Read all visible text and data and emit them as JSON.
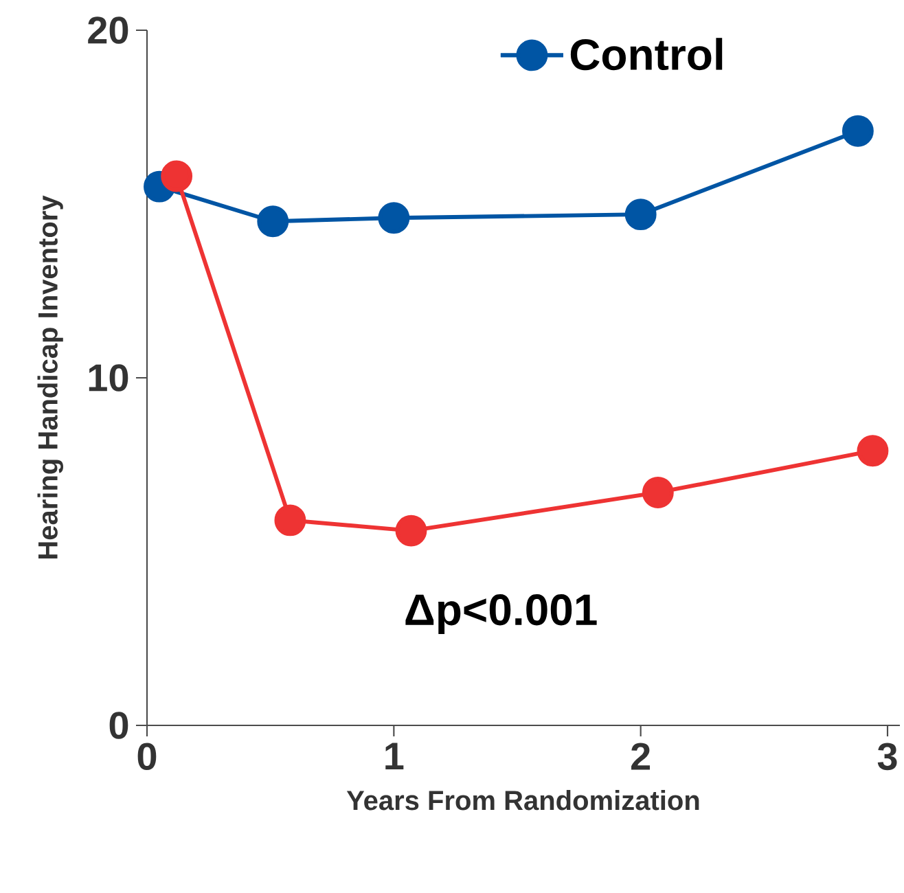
{
  "chart_data": {
    "type": "line",
    "xlabel": "Years From Randomization",
    "ylabel": "Hearing Handicap Inventory",
    "xlim": [
      0,
      3.05
    ],
    "ylim": [
      0,
      20
    ],
    "xticks": [
      0,
      1,
      2,
      3
    ],
    "yticks": [
      0,
      10,
      20
    ],
    "series": [
      {
        "name": "Control",
        "color": "#0055a4",
        "x": [
          0.05,
          0.51,
          1.0,
          2.0,
          2.88
        ],
        "values": [
          15.5,
          14.5,
          14.6,
          14.7,
          17.1
        ]
      },
      {
        "color": "#ee3333",
        "x": [
          0.12,
          0.58,
          1.07,
          2.07,
          2.94
        ],
        "values": [
          15.8,
          5.9,
          5.6,
          6.7,
          7.9
        ]
      }
    ],
    "annotations": [
      "Δp<0.001"
    ],
    "legend": "top",
    "marker": "circle",
    "line_style": "solid",
    "grid": false
  }
}
